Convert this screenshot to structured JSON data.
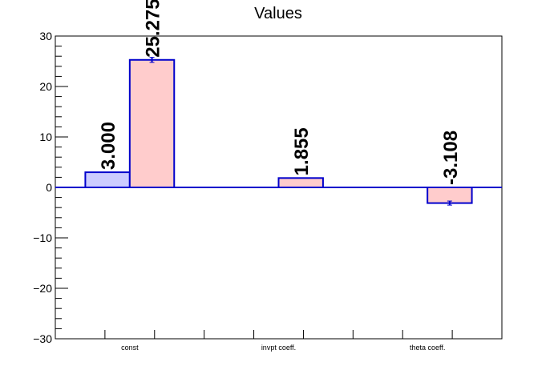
{
  "chart_data": {
    "type": "bar",
    "title": "Values",
    "categories": [
      "const",
      "invpt coeff.",
      "theta coeff."
    ],
    "ylim": [
      -30,
      30
    ],
    "yticks": [
      30,
      20,
      10,
      0,
      -10,
      -20,
      -30
    ],
    "ytick_labels": [
      "30",
      "20",
      "10",
      "0",
      "−10",
      "−20",
      "−30"
    ],
    "series": [
      {
        "values": [
          3.0,
          null,
          null
        ],
        "labels": [
          "3.000",
          "",
          ""
        ],
        "errors": [
          0,
          0,
          0
        ],
        "fill": "#ccccff",
        "stroke": "#0000cc"
      },
      {
        "values": [
          25.275,
          1.855,
          -3.108
        ],
        "labels": [
          "25.275",
          "1.855",
          "-3.108"
        ],
        "errors": [
          0.5,
          0,
          0.4
        ],
        "fill": "#ffcccc",
        "stroke": "#0000cc"
      }
    ],
    "zero_line_color": "#0000cc",
    "grid": false,
    "legend": "none"
  }
}
